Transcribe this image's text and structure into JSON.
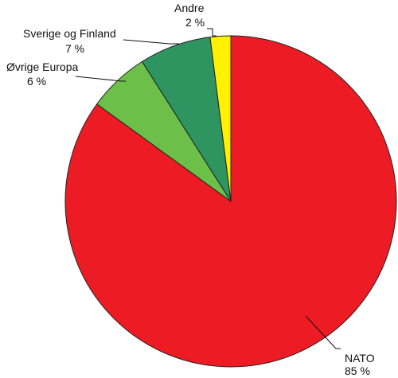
{
  "chart_data": {
    "type": "pie",
    "slices": [
      {
        "label": "NATO",
        "value": 85,
        "value_label": "85 %",
        "color": "#ED1C24"
      },
      {
        "label": "Øvrige Europa",
        "value": 6,
        "value_label": "6 %",
        "color": "#6CC04A"
      },
      {
        "label": "Sverige og Finland",
        "value": 7,
        "value_label": "7 %",
        "color": "#2E9460"
      },
      {
        "label": "Andre",
        "value": 2,
        "value_label": "2 %",
        "color": "#FFF200"
      }
    ],
    "start_angle": "12 o'clock",
    "direction": "clockwise"
  }
}
